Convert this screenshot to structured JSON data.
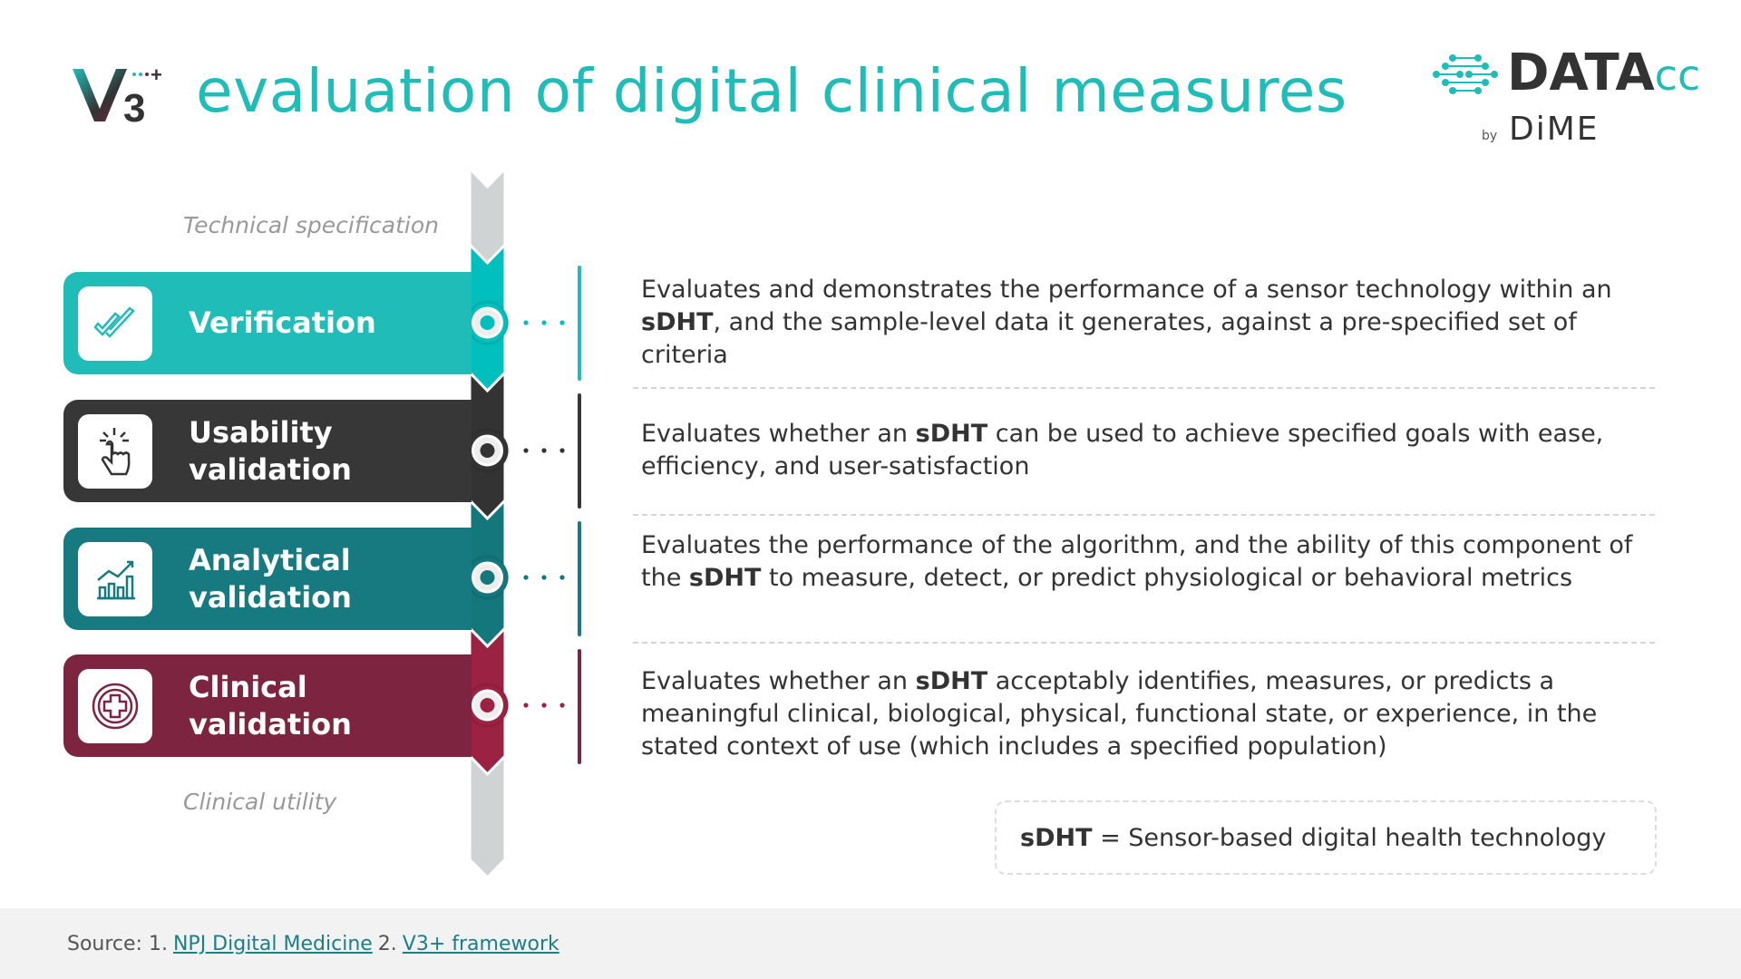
{
  "header": {
    "logo_text": "V3+",
    "title": "evaluation of digital clinical measures"
  },
  "brand": {
    "name_main": "DATA",
    "name_suffix": "cc",
    "by": "by",
    "sub": "DiME"
  },
  "axis": {
    "top_label": "Technical specification",
    "bottom_label": "Clinical utility"
  },
  "stages": [
    {
      "label": "Verification",
      "icon": "double-check-icon",
      "color": "#20bdb8",
      "arrow_color": "#00bfbd",
      "description": [
        {
          "t": "Evaluates and demonstrates the performance of a sensor technology within an "
        },
        {
          "t": "sDHT",
          "b": true
        },
        {
          "t": ", and the sample-level data it generates, against a pre-specified set of criteria"
        }
      ]
    },
    {
      "label": "Usability validation",
      "icon": "hand-pointer-click-icon",
      "color": "#373737",
      "arrow_color": "#333333",
      "description": [
        {
          "t": "Evaluates whether an "
        },
        {
          "t": "sDHT",
          "b": true
        },
        {
          "t": " can be used to achieve specified goals with ease, efficiency, and user-satisfaction"
        }
      ]
    },
    {
      "label": "Analytical validation",
      "icon": "bar-chart-trend-icon",
      "color": "#177a80",
      "arrow_color": "#14777c",
      "description": [
        {
          "t": "Evaluates the performance of the algorithm, and the ability of this component of the "
        },
        {
          "t": "sDHT",
          "b": true
        },
        {
          "t": " to measure, detect, or predict physiological or behavioral metrics"
        }
      ]
    },
    {
      "label": "Clinical validation",
      "icon": "medical-cross-icon",
      "color": "#7d2440",
      "arrow_color": "#9b2242",
      "description": [
        {
          "t": "Evaluates whether an "
        },
        {
          "t": "sDHT",
          "b": true
        },
        {
          "t": " acceptably identifies, measures, or predicts a meaningful clinical, biological, physical, functional state, or experience, in the stated context of use (which includes a specified population)"
        }
      ]
    }
  ],
  "definition": {
    "term": "sDHT",
    "text": " = Sensor-based digital health technology"
  },
  "footer": {
    "prefix": "Source: 1.",
    "link1": "NPJ Digital Medicine",
    "sep": "2.",
    "link2": "V3+ framework"
  }
}
